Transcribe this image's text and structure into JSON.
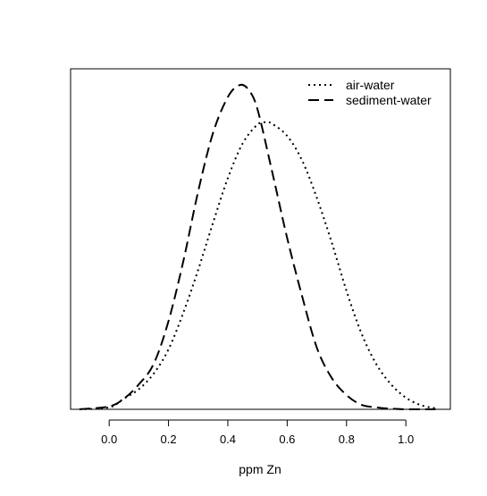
{
  "chart_data": {
    "type": "line",
    "title": "",
    "xlabel": "ppm Zn",
    "ylabel": "",
    "xlim": [
      -0.13,
      1.15
    ],
    "ylim": [
      0,
      1.05
    ],
    "xticks": [
      0.0,
      0.2,
      0.4,
      0.6,
      0.8,
      1.0
    ],
    "xtick_labels": [
      "0.0",
      "0.2",
      "0.4",
      "0.6",
      "0.8",
      "1.0"
    ],
    "yticks": [],
    "grid": false,
    "legend_position": "top-right",
    "series": [
      {
        "name": "air-water",
        "line_style": "dotted",
        "color": "#000000",
        "x": [
          -0.1,
          0.0,
          0.05,
          0.1,
          0.15,
          0.2,
          0.25,
          0.3,
          0.35,
          0.4,
          0.45,
          0.5,
          0.53,
          0.55,
          0.6,
          0.65,
          0.7,
          0.75,
          0.8,
          0.85,
          0.9,
          0.95,
          1.0,
          1.05,
          1.1
        ],
        "y": [
          0.0,
          0.006,
          0.033,
          0.062,
          0.11,
          0.185,
          0.298,
          0.43,
          0.575,
          0.713,
          0.82,
          0.878,
          0.885,
          0.88,
          0.843,
          0.768,
          0.652,
          0.515,
          0.365,
          0.235,
          0.14,
          0.077,
          0.036,
          0.013,
          0.003
        ]
      },
      {
        "name": "sediment-water",
        "line_style": "dashed",
        "color": "#000000",
        "x": [
          -0.1,
          0.0,
          0.05,
          0.1,
          0.15,
          0.2,
          0.25,
          0.3,
          0.35,
          0.4,
          0.44,
          0.47,
          0.5,
          0.55,
          0.6,
          0.65,
          0.7,
          0.75,
          0.8,
          0.85,
          0.9,
          0.95,
          1.0,
          1.05,
          1.1
        ],
        "y": [
          0.0,
          0.009,
          0.033,
          0.077,
          0.14,
          0.272,
          0.457,
          0.672,
          0.852,
          0.963,
          1.0,
          0.985,
          0.925,
          0.73,
          0.528,
          0.35,
          0.19,
          0.097,
          0.044,
          0.014,
          0.006,
          0.002,
          0.0,
          0.0,
          0.0
        ]
      }
    ]
  }
}
